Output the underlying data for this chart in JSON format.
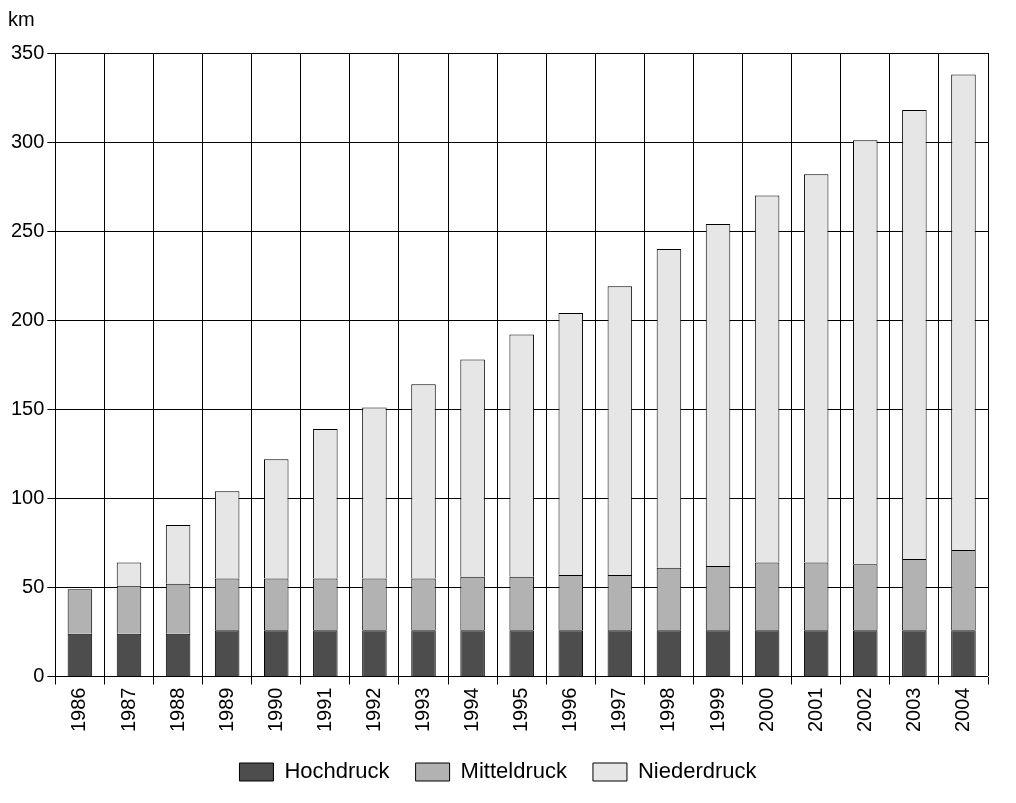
{
  "chart_data": {
    "type": "bar",
    "ylabel": "km",
    "stacked": true,
    "grid": true,
    "legend": "bottom",
    "categories": [
      "1986",
      "1987",
      "1988",
      "1989",
      "1990",
      "1991",
      "1992",
      "1993",
      "1994",
      "1995",
      "1996",
      "1997",
      "1998",
      "1999",
      "2000",
      "2001",
      "2002",
      "2003",
      "2004"
    ],
    "ylim": [
      0,
      350
    ],
    "yticks": [
      0,
      50,
      100,
      150,
      200,
      250,
      300,
      350
    ],
    "series": [
      {
        "name": "Hochdruck",
        "color": "#4d4d4d",
        "values": [
          24,
          24,
          24,
          26,
          26,
          26,
          26,
          26,
          26,
          26,
          26,
          26,
          26,
          26,
          26,
          26,
          26,
          26,
          26
        ]
      },
      {
        "name": "Mitteldruck",
        "color": "#b2b2b2",
        "values": [
          25,
          27,
          28,
          29,
          29,
          29,
          29,
          29,
          30,
          30,
          31,
          31,
          35,
          36,
          38,
          38,
          37,
          40,
          45
        ]
      },
      {
        "name": "Niederdruck",
        "color": "#e6e6e6",
        "values": [
          0,
          13,
          33,
          49,
          67,
          84,
          96,
          109,
          122,
          136,
          147,
          162,
          179,
          192,
          206,
          218,
          238,
          252,
          267
        ]
      }
    ]
  }
}
